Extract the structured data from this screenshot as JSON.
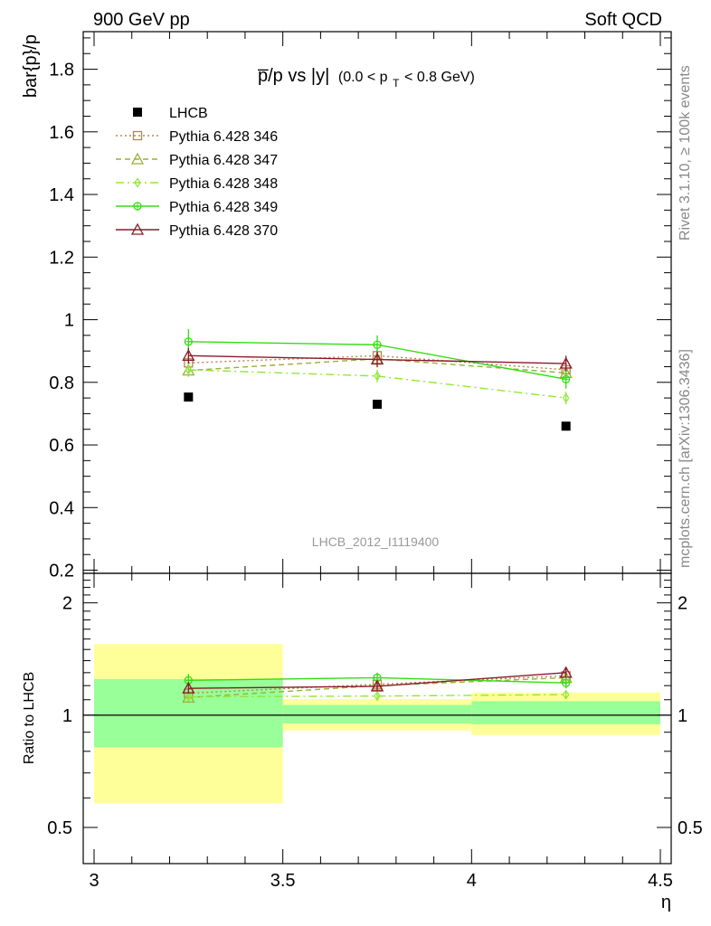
{
  "header": {
    "left": "900 GeV pp",
    "right": "Soft QCD"
  },
  "side_labels": {
    "rivet": "Rivet 3.1.10, ≥ 100k events",
    "mcplots": "mcplots.cern.ch [arXiv:1306.3436]"
  },
  "watermark": "LHCB_2012_I1119400",
  "colors": {
    "lhcb": "#000000",
    "p346": "#b08850",
    "p347": "#99b033",
    "p348": "#90e838",
    "p349": "#33dd11",
    "p370": "#8b1a2a",
    "band_yellow": "#ffff99",
    "band_green": "#99ff99"
  },
  "chart_data": [
    {
      "type": "line",
      "title_parts": {
        "main": "p̅/p vs |y|",
        "cut_open": "(0.0 < p",
        "cut_sub": "T",
        "cut_close": " < 0.8 GeV)"
      },
      "ylabel": "bar{p}/p",
      "xlim": [
        3.0,
        4.5
      ],
      "ylim": [
        0.19,
        1.92
      ],
      "y_ticks": [
        0.2,
        0.4,
        0.6,
        0.8,
        1,
        1.2,
        1.4,
        1.6,
        1.8
      ],
      "y_tick_labels": [
        "0.2",
        "0.4",
        "0.6",
        "0.8",
        "1",
        "1.2",
        "1.4",
        "1.6",
        "1.8"
      ],
      "x": [
        3.25,
        3.75,
        4.25
      ],
      "series": [
        {
          "key": "lhcb",
          "name": "LHCB",
          "values": [
            0.753,
            0.73,
            0.66
          ],
          "errors": [
            0.0,
            0.0,
            0.0
          ],
          "marker": "square-filled"
        },
        {
          "key": "p346",
          "name": "Pythia 6.428 346",
          "values": [
            0.862,
            0.885,
            0.84
          ],
          "errors": [
            0.02,
            0.02,
            0.02
          ],
          "marker": "square-open",
          "dash": "2,3"
        },
        {
          "key": "p347",
          "name": "Pythia 6.428 347",
          "values": [
            0.838,
            0.875,
            0.83
          ],
          "errors": [
            0.02,
            0.02,
            0.02
          ],
          "marker": "triangle-open",
          "dash": "6,4"
        },
        {
          "key": "p348",
          "name": "Pythia 6.428 348",
          "values": [
            0.84,
            0.82,
            0.75
          ],
          "errors": [
            0.02,
            0.02,
            0.02
          ],
          "marker": "diamond-open",
          "dash": "9,4,2,4"
        },
        {
          "key": "p349",
          "name": "Pythia 6.428 349",
          "values": [
            0.93,
            0.92,
            0.81
          ],
          "errors": [
            0.04,
            0.03,
            0.03
          ],
          "marker": "circle-cross",
          "dash": ""
        },
        {
          "key": "p370",
          "name": "Pythia 6.428 370",
          "values": [
            0.885,
            0.873,
            0.86
          ],
          "errors": [
            0.025,
            0.025,
            0.025
          ],
          "marker": "triangle-open",
          "dash": ""
        }
      ]
    },
    {
      "type": "line",
      "ylabel": "Ratio to LHCB",
      "xlabel": "η",
      "xlim": [
        3.0,
        4.5
      ],
      "ylim": [
        0.4,
        2.4
      ],
      "y_scale": "log",
      "y_ticks_labeled": [
        0.5,
        1,
        2
      ],
      "y_tick_labels": [
        "0.5",
        "1",
        "2"
      ],
      "y_ticks_minor": [
        0.6,
        0.7,
        0.8,
        0.9,
        1.1,
        1.2,
        1.3,
        1.4,
        1.5,
        1.6,
        1.7,
        1.8,
        1.9,
        2.1,
        2.2,
        2.3
      ],
      "x_ticks": [
        3.0,
        3.5,
        4.0,
        4.5
      ],
      "x_tick_labels": [
        "3",
        "3.5",
        "4",
        "4.5"
      ],
      "x_ticks_minor": [
        3.1,
        3.2,
        3.3,
        3.4,
        3.6,
        3.7,
        3.8,
        3.9,
        4.1,
        4.2,
        4.3,
        4.4
      ],
      "reference": 1,
      "bands": [
        {
          "x_range": [
            3.0,
            3.5
          ],
          "yellow": [
            0.58,
            1.55
          ],
          "green": [
            0.82,
            1.25
          ]
        },
        {
          "x_range": [
            3.5,
            4.0
          ],
          "yellow": [
            0.91,
            1.105
          ],
          "green": [
            0.95,
            1.065
          ]
        },
        {
          "x_range": [
            4.0,
            4.5
          ],
          "yellow": [
            0.885,
            1.15
          ],
          "green": [
            0.945,
            1.09
          ]
        }
      ],
      "x": [
        3.25,
        3.75,
        4.25
      ],
      "series": [
        {
          "key": "p346",
          "name": "Pythia 6.428 346",
          "values": [
            1.145,
            1.21,
            1.275
          ],
          "errors": [
            0.03,
            0.03,
            0.03
          ]
        },
        {
          "key": "p347",
          "name": "Pythia 6.428 347",
          "values": [
            1.115,
            1.2,
            1.26
          ],
          "errors": [
            0.03,
            0.03,
            0.03
          ]
        },
        {
          "key": "p348",
          "name": "Pythia 6.428 348",
          "values": [
            1.12,
            1.125,
            1.135
          ],
          "errors": [
            0.03,
            0.03,
            0.03
          ]
        },
        {
          "key": "p349",
          "name": "Pythia 6.428 349",
          "values": [
            1.24,
            1.26,
            1.22
          ],
          "errors": [
            0.05,
            0.04,
            0.04
          ]
        },
        {
          "key": "p370",
          "name": "Pythia 6.428 370",
          "values": [
            1.18,
            1.195,
            1.3
          ],
          "errors": [
            0.035,
            0.035,
            0.035
          ]
        }
      ]
    }
  ]
}
